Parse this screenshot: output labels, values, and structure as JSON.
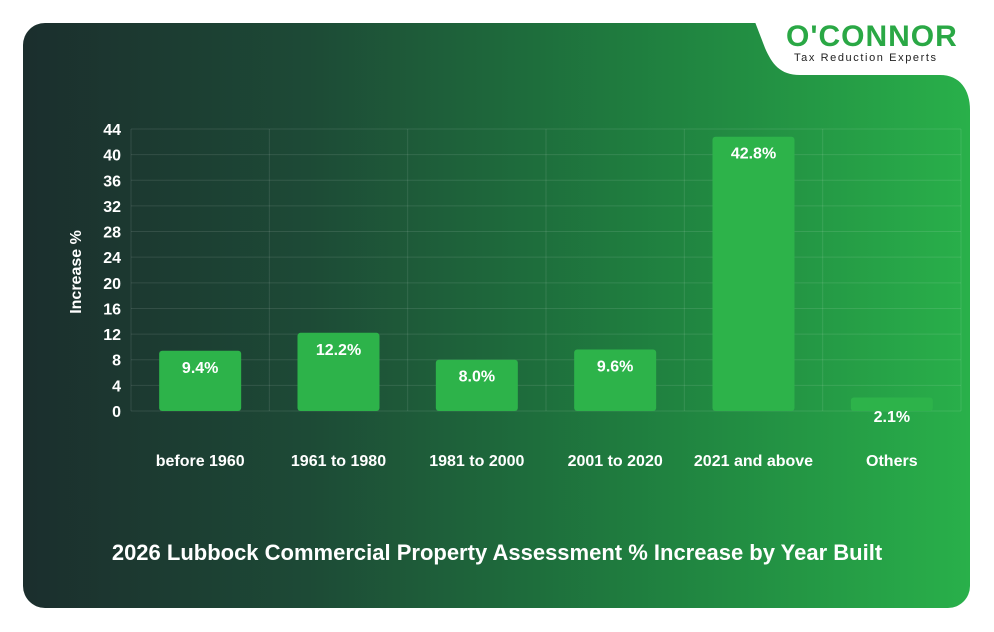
{
  "brand": {
    "name": "O'CONNOR",
    "tagline": "Tax Reduction Experts",
    "color": "#2aa845"
  },
  "chart_data": {
    "type": "bar",
    "title": "2026 Lubbock Commercial Property Assessment % Increase by Year Built",
    "xlabel": "",
    "ylabel": "Increase %",
    "categories": [
      "before 1960",
      "1961 to 1980",
      "1981 to 2000",
      "2001 to 2020",
      "2021 and above",
      "Others"
    ],
    "values": [
      9.4,
      12.2,
      8.0,
      9.6,
      42.8,
      2.1
    ],
    "value_labels": [
      "9.4%",
      "12.2%",
      "8.0%",
      "9.6%",
      "42.8%",
      "2.1%"
    ],
    "ylim": [
      0,
      44
    ],
    "yticks": [
      0,
      4,
      8,
      12,
      16,
      20,
      24,
      28,
      32,
      36,
      40,
      44
    ],
    "grid": true,
    "bar_color": "#2db34a"
  }
}
